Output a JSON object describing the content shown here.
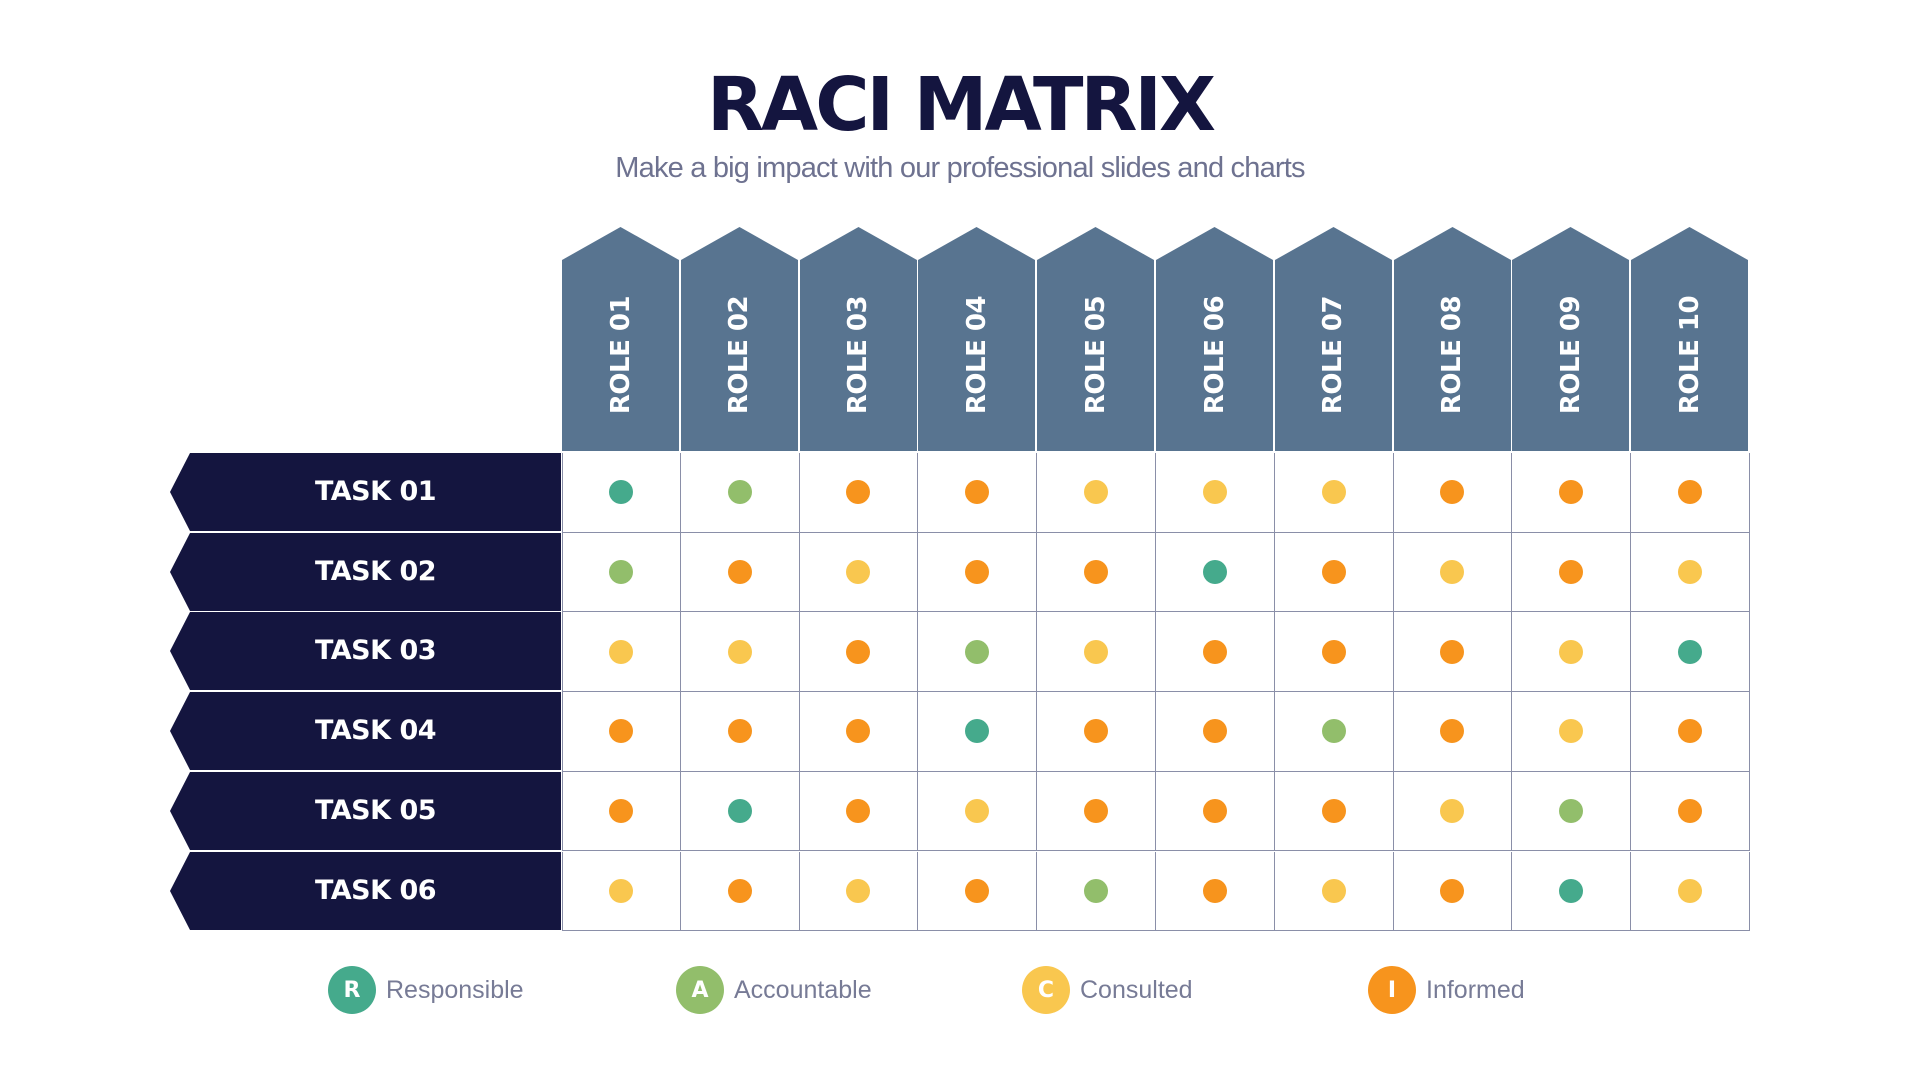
{
  "header": {
    "title": "RACI MATRIX",
    "subtitle": "Make a big impact with our professional slides and charts"
  },
  "colors": {
    "R": "#45aa8c",
    "A": "#92be6b",
    "C": "#f9c74f",
    "I": "#f7941d",
    "role_header": "#587490",
    "task_label": "#14153f"
  },
  "roles": [
    "ROLE 01",
    "ROLE 02",
    "ROLE 03",
    "ROLE 04",
    "ROLE 05",
    "ROLE 06",
    "ROLE 07",
    "ROLE 08",
    "ROLE 09",
    "ROLE 10"
  ],
  "tasks": [
    {
      "label": "TASK 01",
      "assignments": [
        "R",
        "A",
        "I",
        "I",
        "C",
        "C",
        "C",
        "I",
        "I",
        "I"
      ]
    },
    {
      "label": "TASK 02",
      "assignments": [
        "A",
        "I",
        "C",
        "I",
        "I",
        "R",
        "I",
        "C",
        "I",
        "C"
      ]
    },
    {
      "label": "TASK 03",
      "assignments": [
        "C",
        "C",
        "I",
        "A",
        "C",
        "I",
        "I",
        "I",
        "C",
        "R"
      ]
    },
    {
      "label": "TASK 04",
      "assignments": [
        "I",
        "I",
        "I",
        "R",
        "I",
        "I",
        "A",
        "I",
        "C",
        "I"
      ]
    },
    {
      "label": "TASK 05",
      "assignments": [
        "I",
        "R",
        "I",
        "C",
        "I",
        "I",
        "I",
        "C",
        "A",
        "I"
      ]
    },
    {
      "label": "TASK 06",
      "assignments": [
        "C",
        "I",
        "C",
        "I",
        "A",
        "I",
        "C",
        "I",
        "R",
        "C"
      ]
    }
  ],
  "legend": [
    {
      "key": "R",
      "letter": "R",
      "label": "Responsible"
    },
    {
      "key": "A",
      "letter": "A",
      "label": "Accountable"
    },
    {
      "key": "C",
      "letter": "C",
      "label": "Consulted"
    },
    {
      "key": "I",
      "letter": "I",
      "label": "Informed"
    }
  ]
}
